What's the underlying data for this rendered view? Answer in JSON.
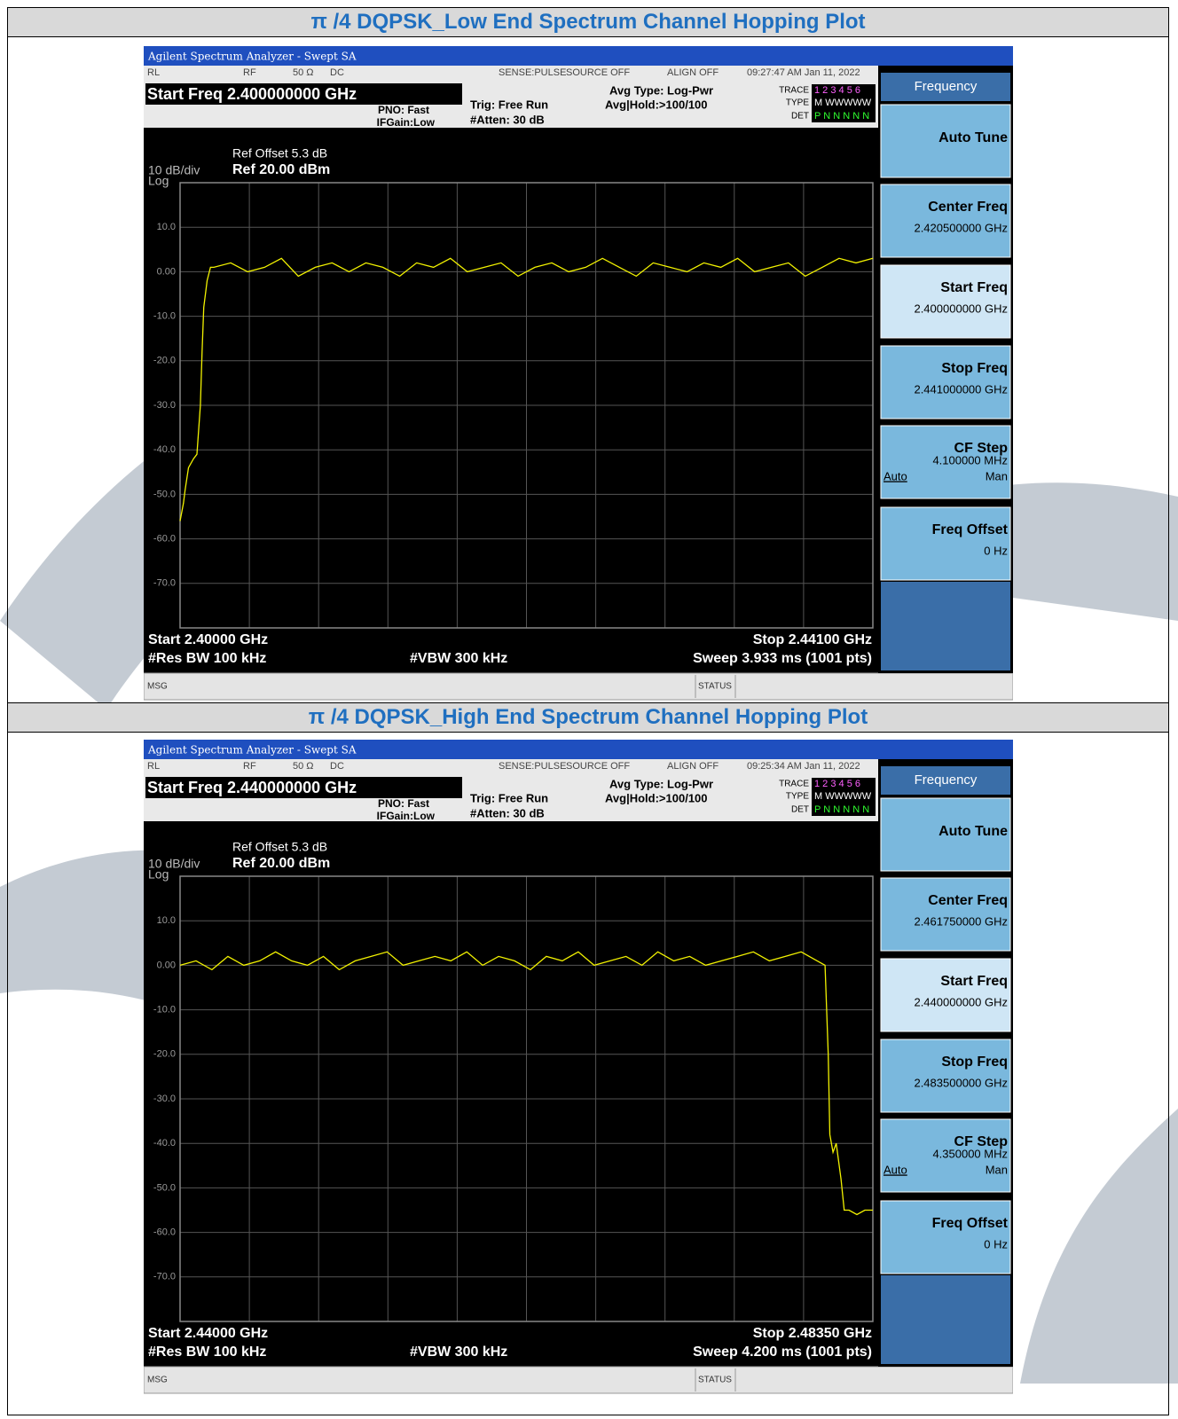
{
  "panels": [
    {
      "title": "π /4 DQPSK_Low End Spectrum Channel Hopping Plot",
      "window_title": "Agilent Spectrum Analyzer - Swept SA",
      "status": {
        "rl": "RL",
        "rf": "RF",
        "impedance": "50 Ω",
        "coupling": "DC",
        "sense": "SENSE:PULSE",
        "source": "SOURCE OFF",
        "align": "ALIGN OFF",
        "timestamp": "09:27:47 AM Jan 11, 2022"
      },
      "setting": "Start Freq 2.400000000 GHz",
      "pno": "PNO: Fast",
      "ifgain": "IFGain:Low",
      "trig": "Trig: Free Run",
      "atten": "#Atten: 30 dB",
      "avg_type": "Avg Type: Log-Pwr",
      "avg_hold": "Avg|Hold:>100/100",
      "trace_box": {
        "trace": "TRACE",
        "type": "TYPE",
        "det": "DET",
        "trace_nums": "1 2 3 4 5 6",
        "type_vals": "M WWWWW",
        "det_vals": "P N N N N N"
      },
      "ref_offset": "Ref Offset 5.3 dB",
      "ref_level": "Ref 20.00 dBm",
      "scale": "10 dB/div",
      "scale_type": "Log",
      "start": "Start 2.40000 GHz",
      "stop": "Stop 2.44100 GHz",
      "rbw": "#Res BW 100 kHz",
      "vbw": "#VBW 300 kHz",
      "sweep": "Sweep  3.933 ms (1001 pts)",
      "msg": "MSG",
      "status_label": "STATUS",
      "menu": "Frequency",
      "softkeys": [
        {
          "label": "Auto Tune"
        },
        {
          "label": "Center Freq",
          "value": "2.420500000 GHz"
        },
        {
          "label": "Start Freq",
          "value": "2.400000000 GHz"
        },
        {
          "label": "Stop Freq",
          "value": "2.441000000 GHz"
        },
        {
          "label": "CF Step",
          "value": "4.100000 MHz",
          "auto": "Auto",
          "man": "Man"
        },
        {
          "label": "Freq Offset",
          "value": "0 Hz"
        }
      ],
      "trace": {
        "type": "line",
        "color": "#f2f200",
        "xlim": [
          2.4,
          2.441
        ],
        "ylim": [
          -80,
          20
        ],
        "yticks": [
          {
            "value": 10,
            "label": "10.0"
          },
          {
            "value": 0,
            "label": "0.00"
          },
          {
            "value": -10,
            "label": "-10.0"
          },
          {
            "value": -20,
            "label": "-20.0"
          },
          {
            "value": -30,
            "label": "-30.0"
          },
          {
            "value": -40,
            "label": "-40.0"
          },
          {
            "value": -50,
            "label": "-50.0"
          },
          {
            "value": -60,
            "label": "-60.0"
          },
          {
            "value": -70,
            "label": "-70.0"
          }
        ],
        "x": [
          2.4,
          2.4002,
          2.4003,
          2.4005,
          2.4008,
          2.401,
          2.4012,
          2.4013,
          2.4014,
          2.4016,
          2.4018,
          2.402,
          2.403,
          2.404,
          2.405,
          2.406,
          2.407,
          2.408,
          2.409,
          2.41,
          2.411,
          2.412,
          2.413,
          2.414,
          2.415,
          2.416,
          2.417,
          2.418,
          2.419,
          2.42,
          2.421,
          2.422,
          2.423,
          2.424,
          2.425,
          2.426,
          2.427,
          2.428,
          2.429,
          2.43,
          2.431,
          2.432,
          2.433,
          2.434,
          2.435,
          2.436,
          2.437,
          2.438,
          2.439,
          2.44,
          2.441
        ],
        "values": [
          -56,
          -52,
          -49,
          -44,
          -42,
          -41,
          -30,
          -18,
          -8,
          -2,
          1,
          1,
          2,
          0,
          1,
          3,
          -1,
          1,
          2,
          0,
          2,
          1,
          -1,
          2,
          1,
          3,
          0,
          1,
          2,
          -1,
          1,
          2,
          0,
          1,
          3,
          1,
          -1,
          2,
          1,
          0,
          2,
          1,
          3,
          0,
          1,
          2,
          -1,
          1,
          3,
          2,
          3
        ]
      }
    },
    {
      "title": "π /4 DQPSK_High End Spectrum Channel Hopping Plot",
      "window_title": "Agilent Spectrum Analyzer - Swept SA",
      "status": {
        "rl": "RL",
        "rf": "RF",
        "impedance": "50 Ω",
        "coupling": "DC",
        "sense": "SENSE:PULSE",
        "source": "SOURCE OFF",
        "align": "ALIGN OFF",
        "timestamp": "09:25:34 AM Jan 11, 2022"
      },
      "setting": "Start Freq 2.440000000 GHz",
      "pno": "PNO: Fast",
      "ifgain": "IFGain:Low",
      "trig": "Trig: Free Run",
      "atten": "#Atten: 30 dB",
      "avg_type": "Avg Type: Log-Pwr",
      "avg_hold": "Avg|Hold:>100/100",
      "trace_box": {
        "trace": "TRACE",
        "type": "TYPE",
        "det": "DET",
        "trace_nums": "1 2 3 4 5 6",
        "type_vals": "M WWWWW",
        "det_vals": "P N N N N N"
      },
      "ref_offset": "Ref Offset 5.3 dB",
      "ref_level": "Ref 20.00 dBm",
      "scale": "10 dB/div",
      "scale_type": "Log",
      "start": "Start 2.44000 GHz",
      "stop": "Stop 2.48350 GHz",
      "rbw": "#Res BW 100 kHz",
      "vbw": "#VBW 300 kHz",
      "sweep": "Sweep  4.200 ms (1001 pts)",
      "msg": "MSG",
      "status_label": "STATUS",
      "menu": "Frequency",
      "softkeys": [
        {
          "label": "Auto Tune"
        },
        {
          "label": "Center Freq",
          "value": "2.461750000 GHz"
        },
        {
          "label": "Start Freq",
          "value": "2.440000000 GHz"
        },
        {
          "label": "Stop Freq",
          "value": "2.483500000 GHz"
        },
        {
          "label": "CF Step",
          "value": "4.350000 MHz",
          "auto": "Auto",
          "man": "Man"
        },
        {
          "label": "Freq Offset",
          "value": "0 Hz"
        }
      ],
      "trace": {
        "type": "line",
        "color": "#f2f200",
        "xlim": [
          2.44,
          2.4835
        ],
        "ylim": [
          -80,
          20
        ],
        "yticks": [
          {
            "value": 10,
            "label": "10.0"
          },
          {
            "value": 0,
            "label": "0.00"
          },
          {
            "value": -10,
            "label": "-10.0"
          },
          {
            "value": -20,
            "label": "-20.0"
          },
          {
            "value": -30,
            "label": "-30.0"
          },
          {
            "value": -40,
            "label": "-40.0"
          },
          {
            "value": -50,
            "label": "-50.0"
          },
          {
            "value": -60,
            "label": "-60.0"
          },
          {
            "value": -70,
            "label": "-70.0"
          }
        ],
        "x": [
          2.44,
          2.441,
          2.442,
          2.443,
          2.444,
          2.445,
          2.446,
          2.447,
          2.448,
          2.449,
          2.45,
          2.451,
          2.452,
          2.453,
          2.454,
          2.455,
          2.456,
          2.457,
          2.458,
          2.459,
          2.46,
          2.461,
          2.462,
          2.463,
          2.464,
          2.465,
          2.466,
          2.467,
          2.468,
          2.469,
          2.47,
          2.471,
          2.472,
          2.473,
          2.474,
          2.475,
          2.476,
          2.477,
          2.478,
          2.479,
          2.48,
          2.4805,
          2.4807,
          2.4808,
          2.481,
          2.4812,
          2.4815,
          2.4817,
          2.482,
          2.4825,
          2.483,
          2.4835
        ],
        "values": [
          0,
          1,
          -1,
          2,
          0,
          1,
          3,
          1,
          0,
          2,
          -1,
          1,
          2,
          3,
          0,
          1,
          2,
          1,
          3,
          0,
          2,
          1,
          -1,
          2,
          1,
          3,
          0,
          1,
          2,
          0,
          3,
          1,
          2,
          0,
          1,
          2,
          3,
          1,
          2,
          3,
          1,
          0,
          -20,
          -38,
          -42,
          -40,
          -48,
          -55,
          -55,
          -56,
          -55,
          -55
        ]
      }
    }
  ]
}
